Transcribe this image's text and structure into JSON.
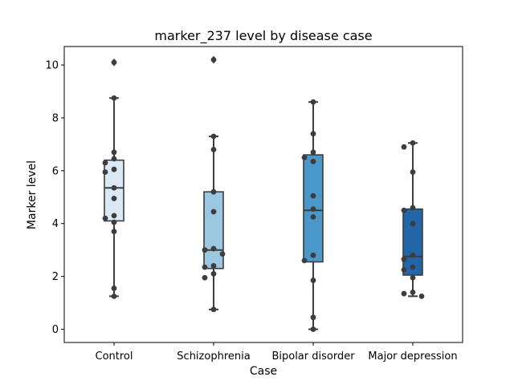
{
  "chart_data": {
    "type": "box",
    "title": "marker_237 level by disease case",
    "xlabel": "Case",
    "ylabel": "Marker level",
    "categories": [
      "Control",
      "Schizophrenia",
      "Bipolar disorder",
      "Major depression"
    ],
    "ylim": [
      -0.5,
      10.7
    ],
    "yticks": [
      0,
      2,
      4,
      6,
      8,
      10
    ],
    "grid": false,
    "legend": "none",
    "box_colors": [
      "#dbe9f6",
      "#9ac8e0",
      "#4a98c9",
      "#2265a8"
    ],
    "boxes": [
      {
        "category": "Control",
        "q1": 4.1,
        "median": 5.35,
        "q3": 6.4,
        "whisker_low": 1.25,
        "whisker_high": 8.75,
        "outliers": [
          10.1
        ]
      },
      {
        "category": "Schizophrenia",
        "q1": 2.3,
        "median": 3.0,
        "q3": 5.2,
        "whisker_low": 0.75,
        "whisker_high": 7.3,
        "outliers": [
          10.2
        ]
      },
      {
        "category": "Bipolar disorder",
        "q1": 2.55,
        "median": 4.5,
        "q3": 6.6,
        "whisker_low": 0.0,
        "whisker_high": 8.6,
        "outliers": []
      },
      {
        "category": "Major depression",
        "q1": 2.05,
        "median": 2.75,
        "q3": 4.55,
        "whisker_low": 1.25,
        "whisker_high": 7.05,
        "outliers": []
      }
    ],
    "points": [
      {
        "category": "Control",
        "values": [
          10.1,
          8.75,
          6.7,
          6.45,
          6.3,
          6.05,
          5.95,
          5.35,
          4.95,
          4.3,
          4.2,
          4.05,
          3.7,
          1.55,
          1.25
        ]
      },
      {
        "category": "Schizophrenia",
        "values": [
          10.2,
          7.3,
          6.8,
          5.2,
          4.45,
          3.05,
          3.0,
          2.85,
          2.4,
          2.35,
          2.1,
          1.95,
          0.75
        ]
      },
      {
        "category": "Bipolar disorder",
        "values": [
          8.6,
          7.4,
          6.7,
          6.5,
          6.35,
          5.05,
          4.55,
          4.25,
          2.8,
          2.6,
          1.85,
          0.45,
          0.0
        ]
      },
      {
        "category": "Major depression",
        "values": [
          7.05,
          6.9,
          5.95,
          4.6,
          4.5,
          4.0,
          2.8,
          2.65,
          2.35,
          2.25,
          1.95,
          1.4,
          1.35,
          1.25
        ]
      }
    ]
  }
}
